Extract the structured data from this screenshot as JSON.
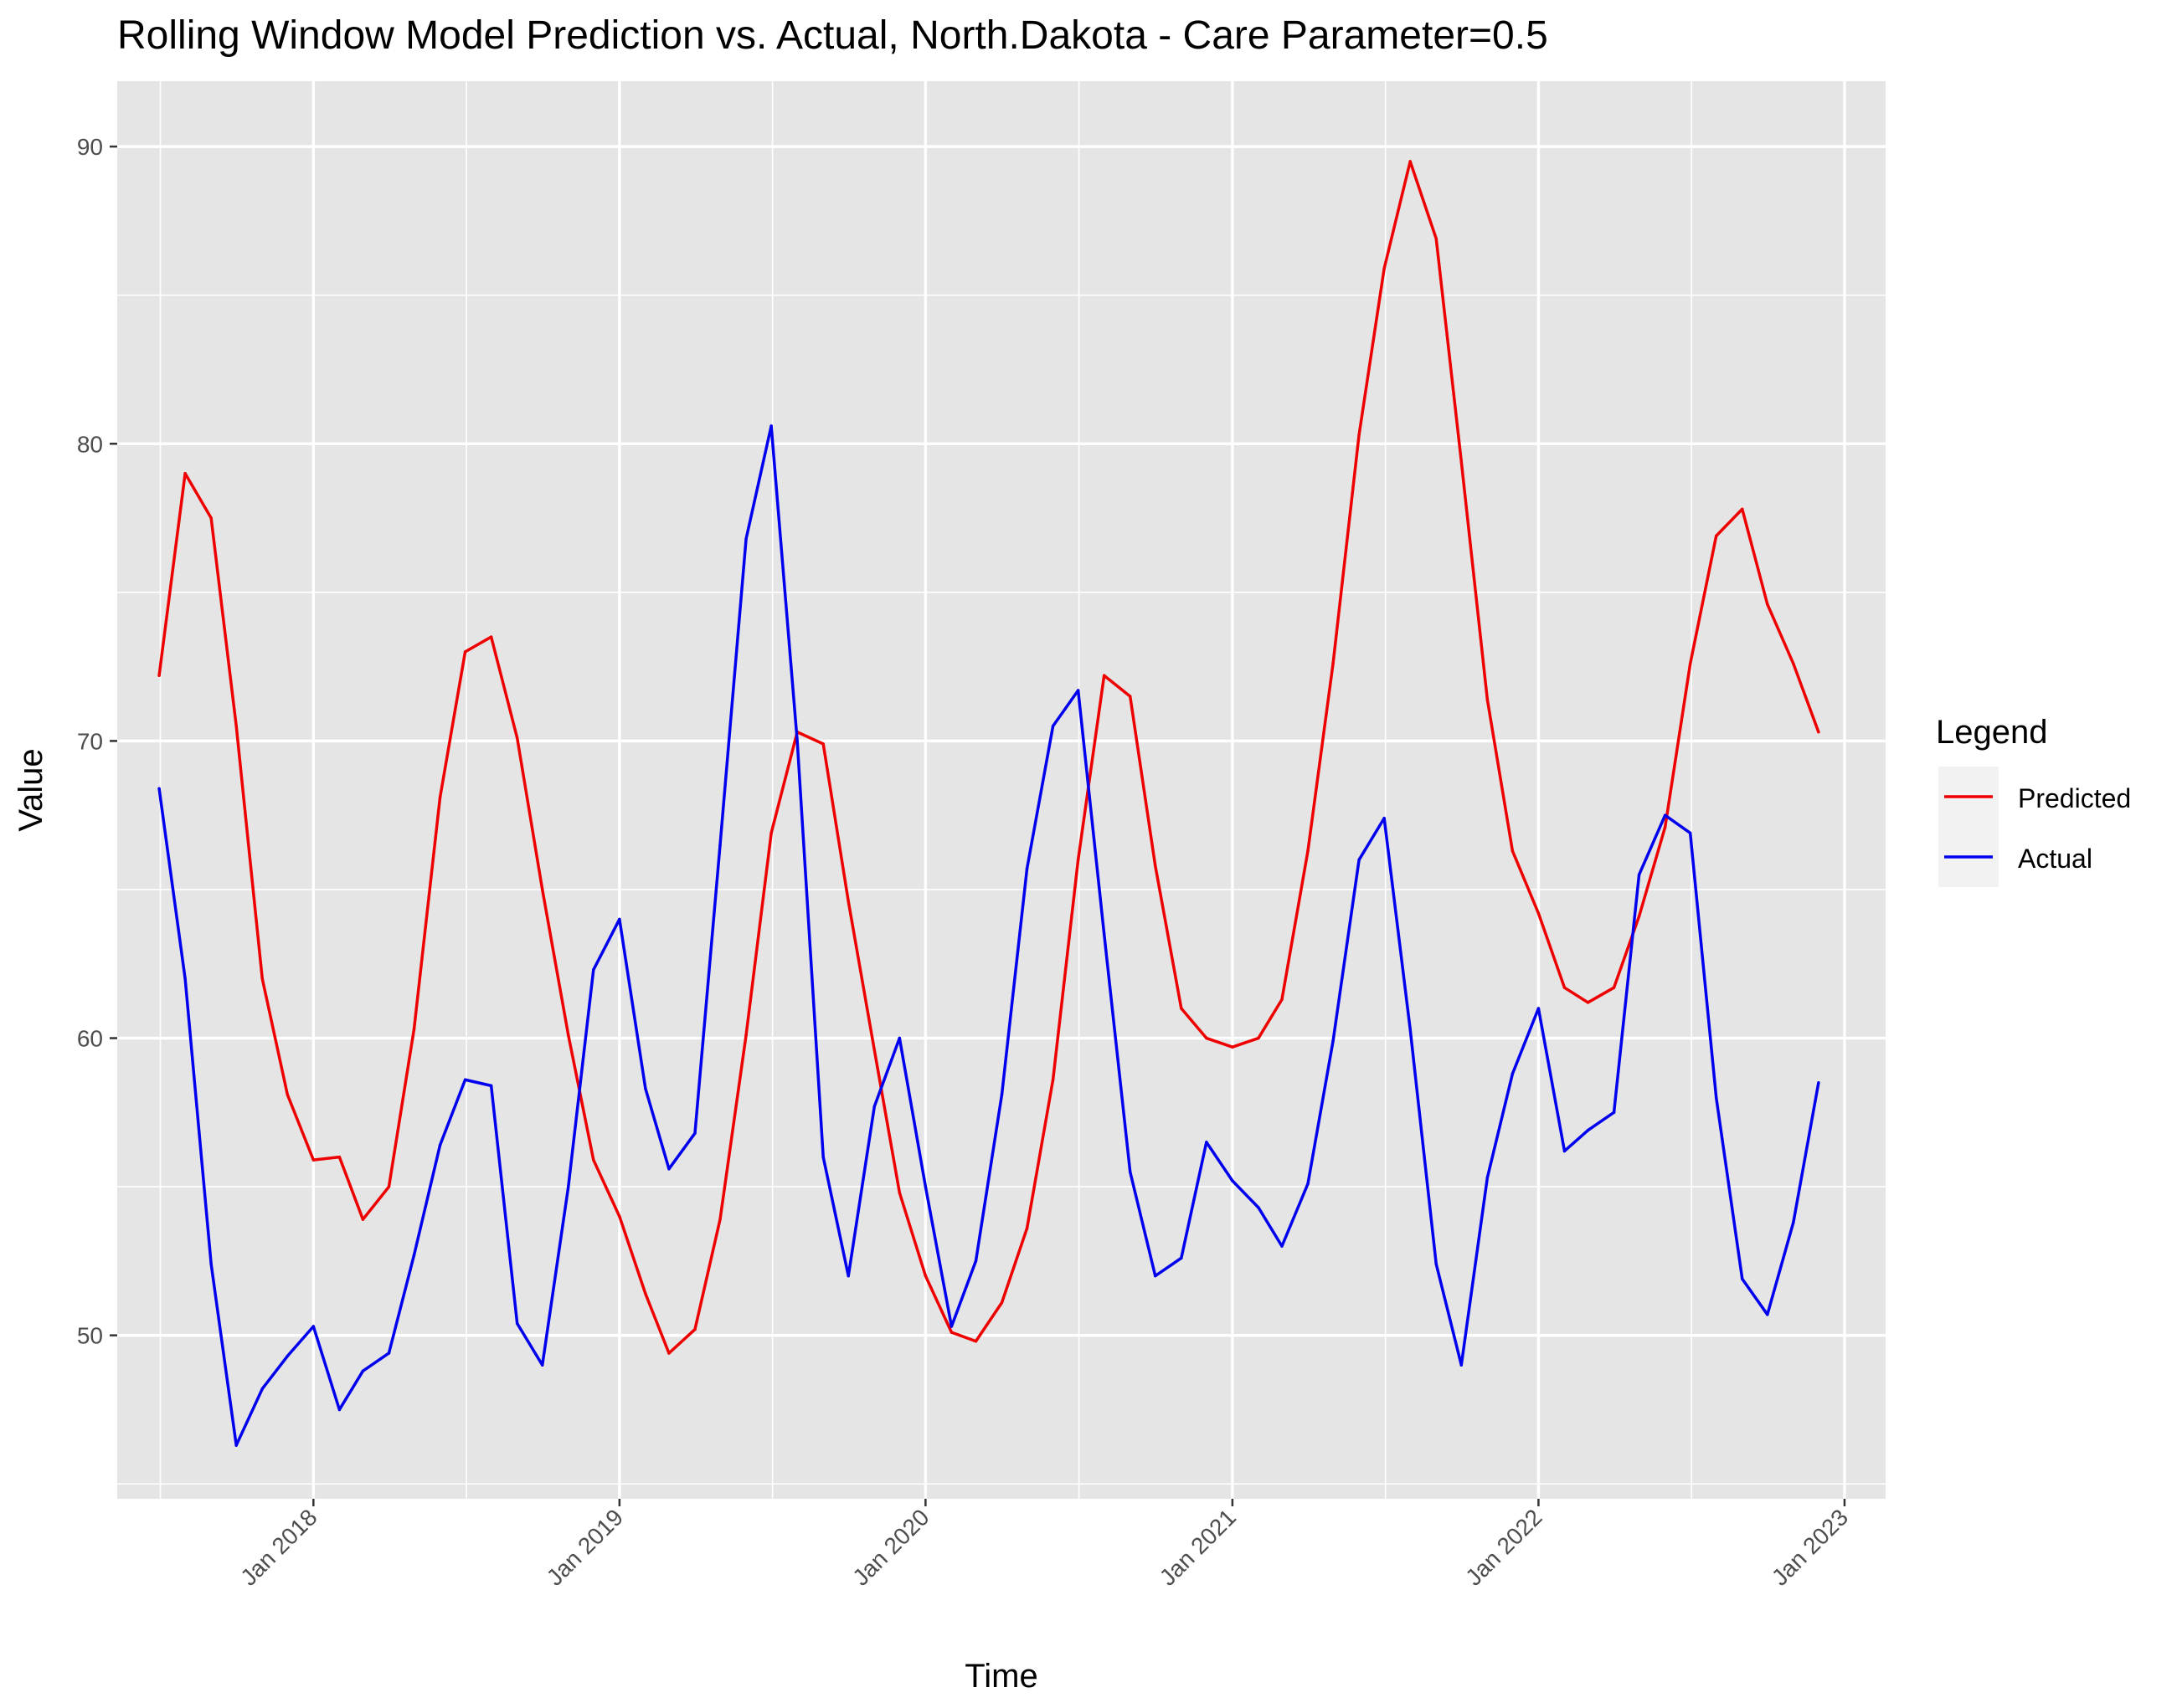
{
  "chart_data": {
    "type": "line",
    "title": "Rolling Window Model Prediction vs. Actual, North.Dakota - Care Parameter=0.5",
    "xlabel": "Time",
    "ylabel": "Value",
    "legend": {
      "title": "Legend",
      "position": "right"
    },
    "grid": true,
    "x_range": [
      "2017-05-12",
      "2023-02-19"
    ],
    "ylim": [
      44.5,
      92.2
    ],
    "x_ticks": [
      {
        "date": "2018-01-01",
        "label": "Jan 2018"
      },
      {
        "date": "2019-01-01",
        "label": "Jan 2019"
      },
      {
        "date": "2020-01-01",
        "label": "Jan 2020"
      },
      {
        "date": "2021-01-01",
        "label": "Jan 2021"
      },
      {
        "date": "2022-01-01",
        "label": "Jan 2022"
      },
      {
        "date": "2023-01-01",
        "label": "Jan 2023"
      }
    ],
    "y_ticks": [
      50,
      60,
      70,
      80,
      90
    ],
    "x": [
      "2017-07-01",
      "2017-08-01",
      "2017-09-01",
      "2017-10-01",
      "2017-11-01",
      "2017-12-01",
      "2018-01-01",
      "2018-02-01",
      "2018-03-01",
      "2018-04-01",
      "2018-05-01",
      "2018-06-01",
      "2018-07-01",
      "2018-08-01",
      "2018-09-01",
      "2018-10-01",
      "2018-11-01",
      "2018-12-01",
      "2019-01-01",
      "2019-02-01",
      "2019-03-01",
      "2019-04-01",
      "2019-05-01",
      "2019-06-01",
      "2019-07-01",
      "2019-08-01",
      "2019-09-01",
      "2019-10-01",
      "2019-11-01",
      "2019-12-01",
      "2020-01-01",
      "2020-02-01",
      "2020-03-01",
      "2020-04-01",
      "2020-05-01",
      "2020-06-01",
      "2020-07-01",
      "2020-08-01",
      "2020-09-01",
      "2020-10-01",
      "2020-11-01",
      "2020-12-01",
      "2021-01-01",
      "2021-02-01",
      "2021-03-01",
      "2021-04-01",
      "2021-05-01",
      "2021-06-01",
      "2021-07-01",
      "2021-08-01",
      "2021-09-01",
      "2021-10-01",
      "2021-11-01",
      "2021-12-01",
      "2022-01-01",
      "2022-02-01",
      "2022-03-01",
      "2022-04-01",
      "2022-05-01",
      "2022-06-01",
      "2022-07-01",
      "2022-08-01",
      "2022-09-01",
      "2022-10-01",
      "2022-11-01",
      "2022-12-01"
    ],
    "series": [
      {
        "name": "Predicted",
        "color": "#ee0000",
        "values": [
          72.2,
          79.0,
          77.5,
          70.5,
          62.0,
          58.1,
          55.9,
          56.0,
          53.9,
          55.0,
          60.3,
          68.1,
          73.0,
          73.5,
          70.1,
          65.0,
          60.1,
          55.9,
          54.0,
          51.4,
          49.4,
          50.2,
          53.9,
          60.1,
          66.9,
          70.3,
          69.9,
          64.6,
          59.6,
          54.8,
          52.0,
          50.1,
          49.8,
          51.1,
          53.6,
          58.6,
          66.0,
          72.2,
          71.5,
          65.8,
          61.0,
          60.0,
          59.7,
          60.0,
          61.3,
          66.3,
          72.6,
          80.3,
          85.9,
          89.5,
          86.9,
          79.4,
          71.4,
          66.3,
          64.2,
          61.7,
          61.2,
          61.7,
          64.1,
          67.1,
          72.6,
          76.9,
          77.8,
          74.6,
          72.6,
          70.3
        ]
      },
      {
        "name": "Actual",
        "color": "#0000ee",
        "values": [
          68.4,
          62.0,
          52.4,
          46.3,
          48.2,
          49.3,
          50.3,
          47.5,
          48.8,
          49.4,
          52.7,
          56.4,
          58.6,
          58.4,
          50.4,
          49.0,
          55.0,
          62.3,
          64.0,
          58.3,
          55.6,
          56.8,
          66.5,
          76.8,
          80.6,
          70.0,
          56.0,
          52.0,
          57.7,
          60.0,
          55.0,
          50.3,
          52.5,
          58.1,
          65.7,
          70.5,
          71.7,
          63.5,
          55.5,
          52.0,
          52.6,
          56.5,
          55.2,
          54.3,
          53.0,
          55.1,
          59.9,
          66.0,
          67.4,
          60.3,
          52.4,
          49.0,
          55.3,
          58.8,
          61.0,
          56.2,
          56.9,
          57.5,
          65.5,
          67.5,
          66.9,
          58.0,
          51.9,
          50.7,
          53.8,
          58.5
        ]
      }
    ]
  }
}
